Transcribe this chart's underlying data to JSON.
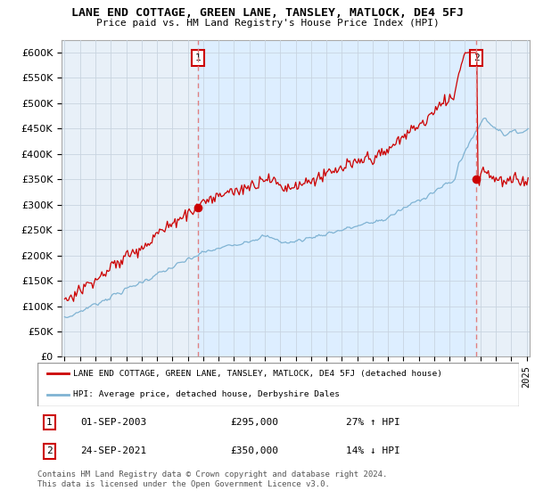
{
  "title": "LANE END COTTAGE, GREEN LANE, TANSLEY, MATLOCK, DE4 5FJ",
  "subtitle": "Price paid vs. HM Land Registry's House Price Index (HPI)",
  "ylabel_ticks": [
    "£0",
    "£50K",
    "£100K",
    "£150K",
    "£200K",
    "£250K",
    "£300K",
    "£350K",
    "£400K",
    "£450K",
    "£500K",
    "£550K",
    "£600K"
  ],
  "ytick_values": [
    0,
    50000,
    100000,
    150000,
    200000,
    250000,
    300000,
    350000,
    400000,
    450000,
    500000,
    550000,
    600000
  ],
  "ylim": [
    0,
    625000
  ],
  "xlim_start": 1994.8,
  "xlim_end": 2025.2,
  "sale1_x": 2003.67,
  "sale1_y": 295000,
  "sale2_x": 2021.73,
  "sale2_y": 350000,
  "red_line_color": "#cc0000",
  "blue_line_color": "#7fb3d3",
  "vline_color": "#e08080",
  "fill_color": "#ddeeff",
  "plot_bg_color": "#e8f0f8",
  "legend_label_red": "LANE END COTTAGE, GREEN LANE, TANSLEY, MATLOCK, DE4 5FJ (detached house)",
  "legend_label_blue": "HPI: Average price, detached house, Derbyshire Dales",
  "background_color": "#ffffff",
  "grid_color": "#c8d4e0"
}
